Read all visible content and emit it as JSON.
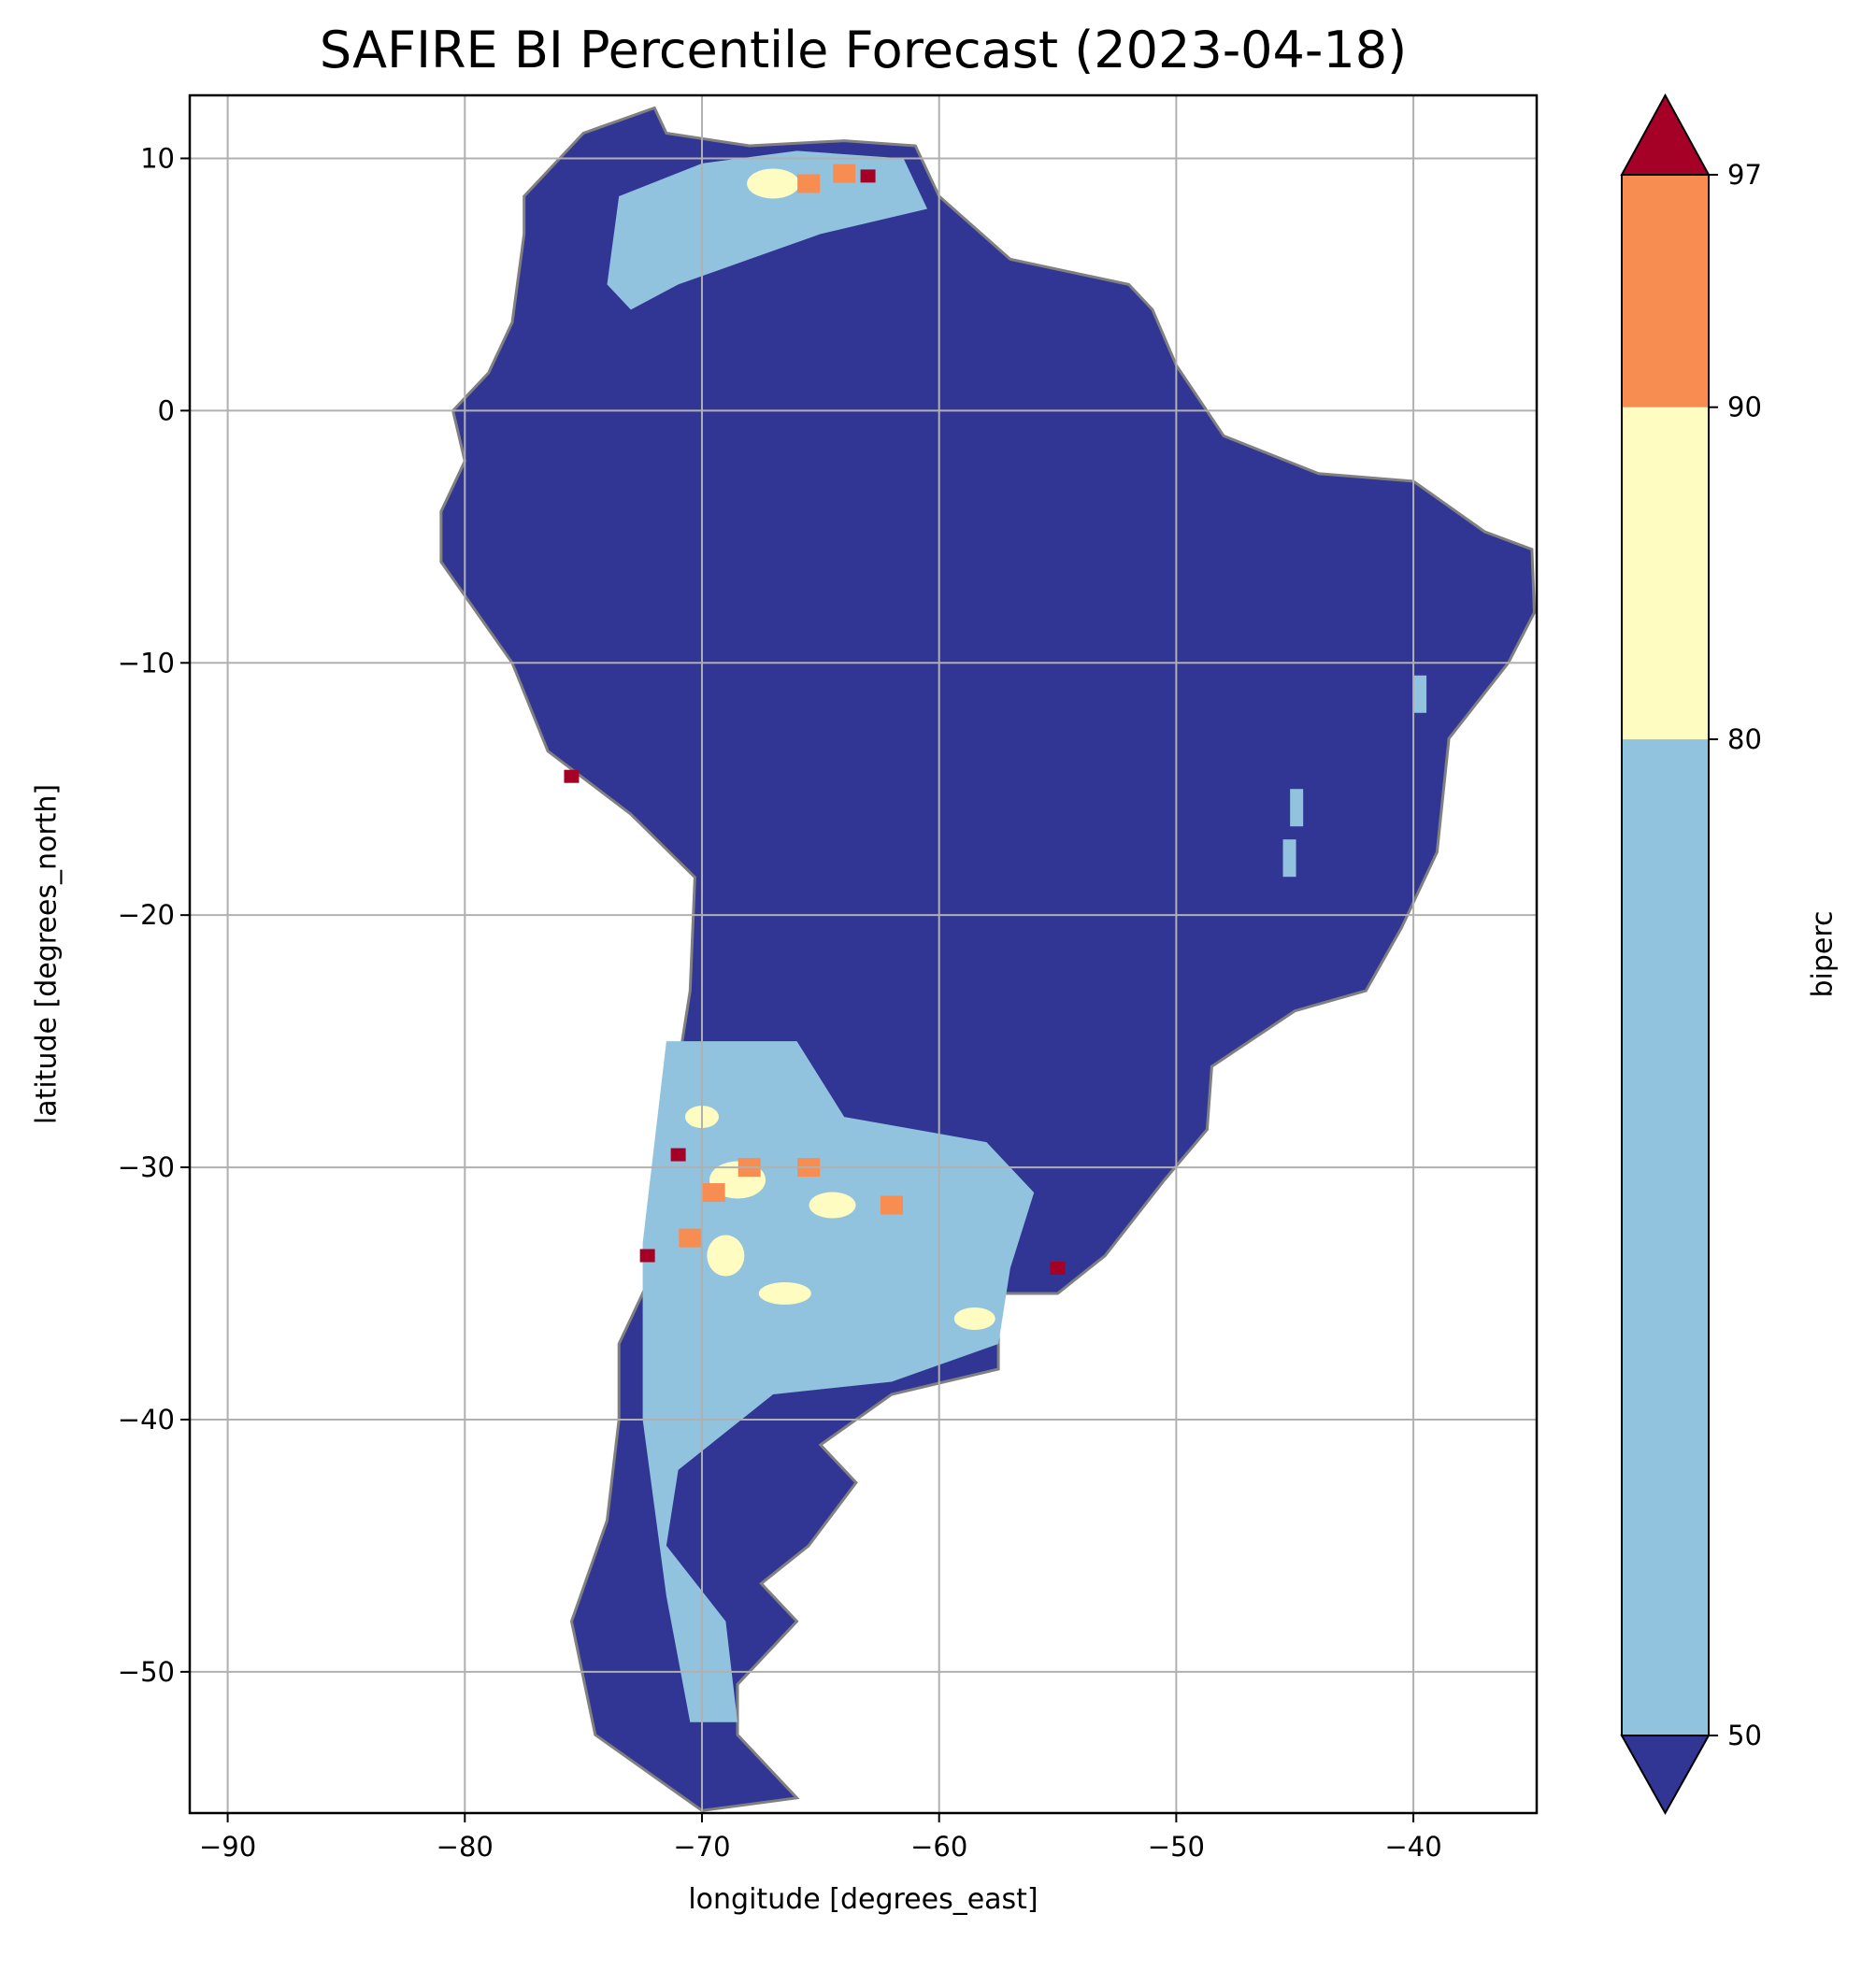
{
  "chart_data": {
    "type": "heatmap",
    "title": "SAFIRE BI Percentile Forecast (2023-04-18)",
    "xlabel": "longitude [degrees_east]",
    "ylabel": "latitude [degrees_north]",
    "xlim": [
      -91.6,
      -34.8
    ],
    "ylim": [
      -55.6,
      12.5
    ],
    "xticks": [
      -90,
      -80,
      -70,
      -60,
      -50,
      -40
    ],
    "xtick_labels": [
      "−90",
      "−80",
      "−70",
      "−60",
      "−50",
      "−40"
    ],
    "yticks": [
      10,
      0,
      -10,
      -20,
      -30,
      -40,
      -50
    ],
    "ytick_labels": [
      "10",
      "0",
      "−10",
      "−20",
      "−30",
      "−40",
      "−50"
    ],
    "grid": true,
    "colorbar": {
      "label": "biperc",
      "levels": [
        50,
        80,
        90,
        97
      ],
      "tick_labels": [
        "50",
        "80",
        "90",
        "97"
      ],
      "colors": {
        "under": "#313695",
        "50-80": "#91c3de",
        "80-90": "#fefcc0",
        "90-97": "#f88d52",
        "over": "#a50026"
      },
      "extend": "both"
    },
    "summary": "Most of South America below 50th percentile; 50-80 band across central/southern Argentina and northern Venezuela; 80-97+ patches in western Argentina and Venezuela llanos"
  }
}
